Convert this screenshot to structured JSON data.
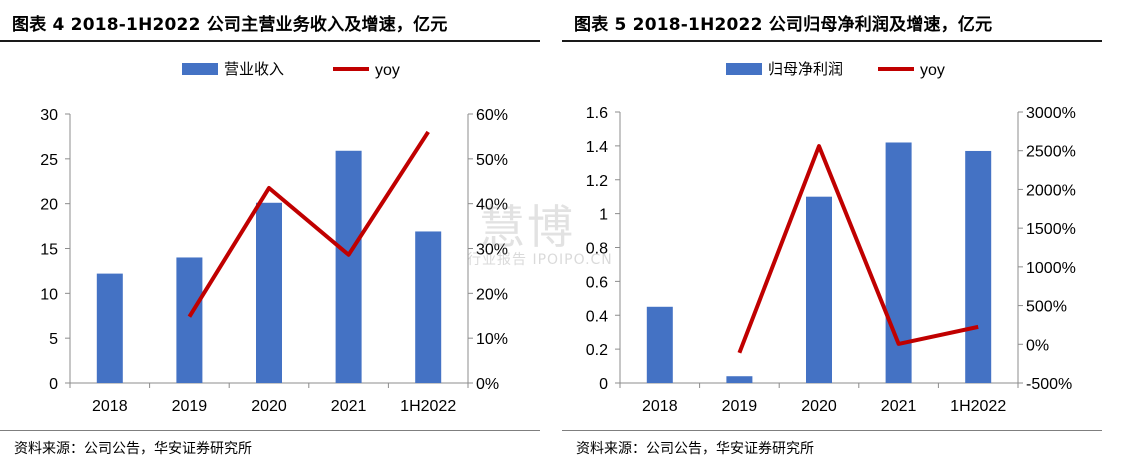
{
  "colors": {
    "bar": "#4472C4",
    "line": "#C00000",
    "axis": "#8c8c8c"
  },
  "chart_data": [
    {
      "type": "bar",
      "title": "图表 4 2018-1H2022 公司主营业务收入及增速，亿元",
      "source": "资料来源：公司公告，华安证券研究所",
      "categories": [
        "2018",
        "2019",
        "2020",
        "2021",
        "1H2022"
      ],
      "series": [
        {
          "name": "营业收入",
          "type": "bar",
          "axis": "left",
          "values": [
            12.2,
            14.0,
            20.1,
            25.9,
            16.9
          ]
        },
        {
          "name": "yoy",
          "type": "line",
          "axis": "right",
          "values": [
            null,
            0.148,
            0.435,
            0.286,
            0.56
          ]
        }
      ],
      "y_left": {
        "min": 0,
        "max": 30,
        "ticks": [
          0,
          5,
          10,
          15,
          20,
          25,
          30
        ],
        "tick_labels": [
          "0",
          "5",
          "10",
          "15",
          "20",
          "25",
          "30"
        ]
      },
      "y_right": {
        "min": 0,
        "max": 0.6,
        "ticks": [
          0,
          0.1,
          0.2,
          0.3,
          0.4,
          0.5,
          0.6
        ],
        "tick_labels": [
          "0%",
          "10%",
          "20%",
          "30%",
          "40%",
          "50%",
          "60%"
        ]
      },
      "legend": "top-center",
      "grid": false
    },
    {
      "type": "bar",
      "title": "图表 5 2018-1H2022 公司归母净利润及增速，亿元",
      "source": "资料来源：公司公告，华安证券研究所",
      "categories": [
        "2018",
        "2019",
        "2020",
        "2021",
        "1H2022"
      ],
      "series": [
        {
          "name": "归母净利润",
          "type": "bar",
          "axis": "left",
          "values": [
            0.45,
            0.04,
            1.1,
            1.42,
            1.37
          ]
        },
        {
          "name": "yoy",
          "type": "line",
          "axis": "right",
          "values": [
            null,
            -1.1,
            25.6,
            0.05,
            2.25
          ]
        }
      ],
      "y_left": {
        "min": 0,
        "max": 1.6,
        "ticks": [
          0,
          0.2,
          0.4,
          0.6,
          0.8,
          1.0,
          1.2,
          1.4,
          1.6
        ],
        "tick_labels": [
          "0",
          "0.2",
          "0.4",
          "0.6",
          "0.8",
          "1",
          "1.2",
          "1.4",
          "1.6"
        ]
      },
      "y_right": {
        "min": -5,
        "max": 30,
        "ticks": [
          -5,
          0,
          5,
          10,
          15,
          20,
          25,
          30
        ],
        "tick_labels": [
          "-500%",
          "0%",
          "500%",
          "1000%",
          "1500%",
          "2000%",
          "2500%",
          "3000%"
        ]
      },
      "legend": "top-center",
      "grid": false
    }
  ],
  "watermark": {
    "main": "慧博",
    "sub": "行业报告 IPOIPO.CN"
  }
}
